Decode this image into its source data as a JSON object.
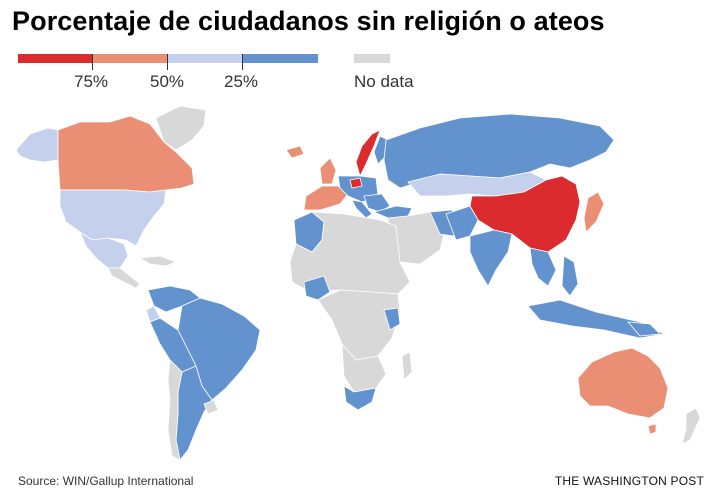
{
  "title": "Porcentaje de ciudadanos sin religión o ateos",
  "legend": {
    "colors": {
      "high": "#dc2b2f",
      "mid_high": "#eb8f74",
      "mid_low": "#c5d1ec",
      "low": "#6393cf",
      "no_data": "#d8d8d8"
    },
    "ticks": [
      "75%",
      "50%",
      "25%"
    ],
    "no_data_label": "No data"
  },
  "footer": {
    "source": "Source: WIN/Gallup International",
    "credit": "THE WASHINGTON POST"
  }
}
